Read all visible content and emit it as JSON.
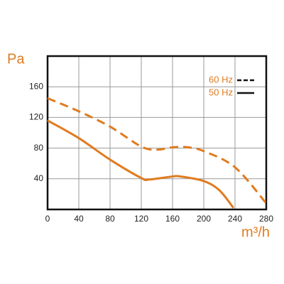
{
  "chart_data": {
    "type": "line",
    "y_label": "Pa",
    "x_label": "m³/h",
    "series": [
      {
        "name": "60 Hz",
        "color": "#e07b20",
        "dashed": true,
        "x": [
          0,
          40,
          80,
          120,
          140,
          160,
          180,
          200,
          240,
          280
        ],
        "values": [
          145,
          128,
          108,
          82,
          78,
          81,
          81,
          76,
          55,
          8
        ]
      },
      {
        "name": "50 Hz",
        "color": "#e07b20",
        "dashed": false,
        "x": [
          0,
          40,
          80,
          120,
          130,
          160,
          170,
          200,
          220,
          238
        ],
        "values": [
          116,
          93,
          65,
          41,
          39,
          43,
          43,
          37,
          25,
          2
        ]
      }
    ],
    "legend_color": "#111111",
    "legend_position": "upper right",
    "xlim": [
      0,
      280
    ],
    "xticks": [
      0,
      40,
      80,
      120,
      160,
      200,
      240,
      280
    ],
    "ylim": [
      0,
      200
    ],
    "yticks": [
      40,
      80,
      120,
      160
    ],
    "grid": true,
    "label_color": "#e07b20"
  }
}
